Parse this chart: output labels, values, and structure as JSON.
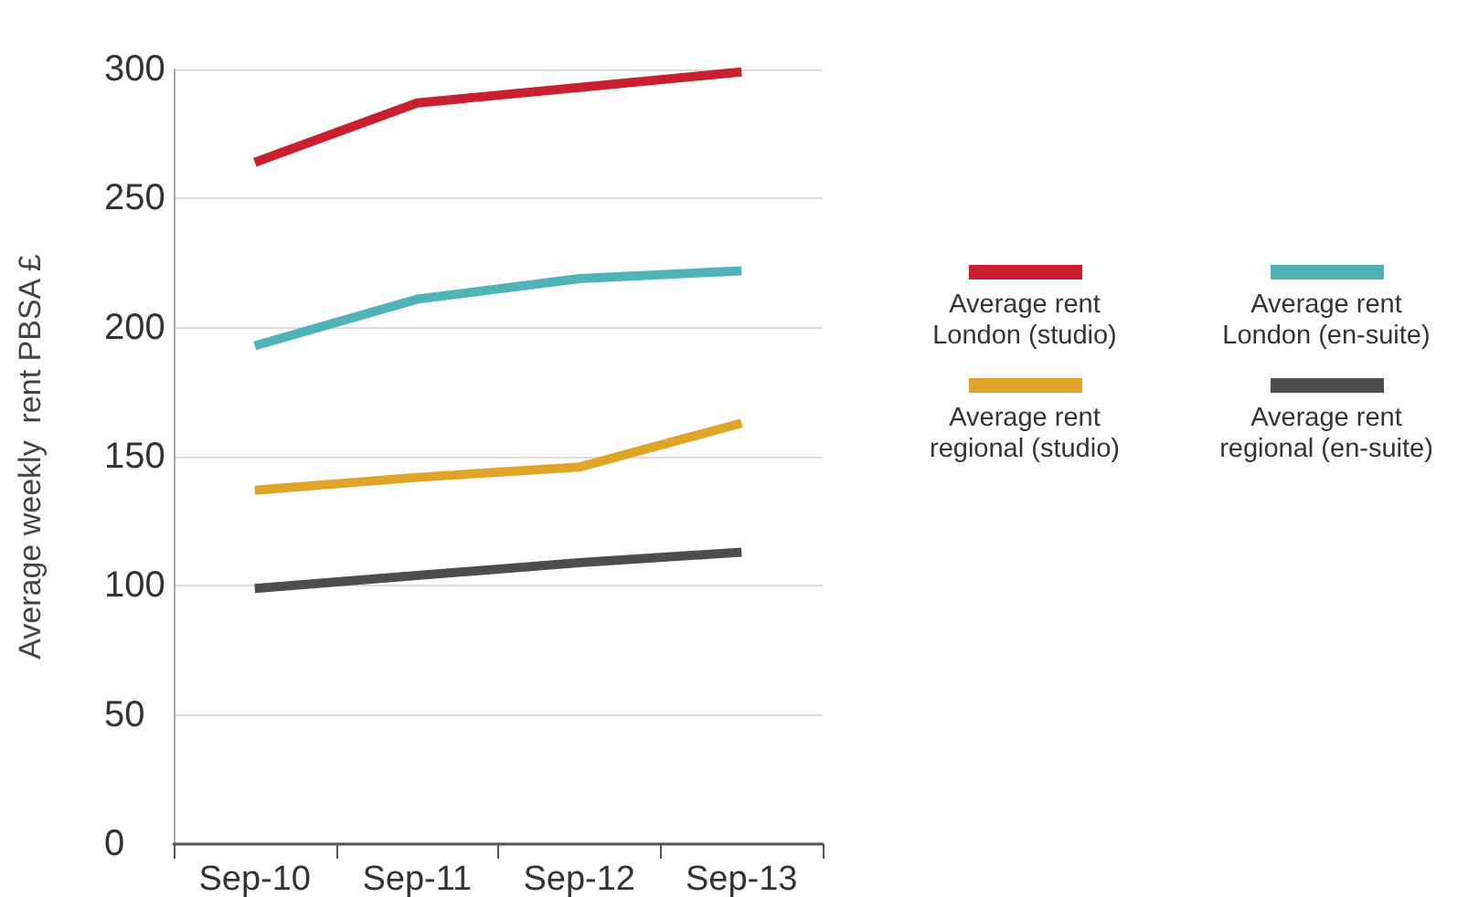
{
  "chart_data": {
    "type": "line",
    "ylabel": "Average weekly  rent PBSA £",
    "categories": [
      "Sep-10",
      "Sep-11",
      "Sep-12",
      "Sep-13"
    ],
    "series": [
      {
        "name": "Average rent London (studio)",
        "color": "#c8202f",
        "values": [
          264,
          287,
          293,
          299
        ]
      },
      {
        "name": "Average rent London (en-suite)",
        "color": "#4fb3b8",
        "values": [
          193,
          211,
          219,
          222
        ]
      },
      {
        "name": "Average rent regional (studio)",
        "color": "#e0a526",
        "values": [
          137,
          142,
          146,
          163
        ]
      },
      {
        "name": "Average rent regional (en-suite)",
        "color": "#4d4d4f",
        "values": [
          99,
          104,
          109,
          113
        ]
      }
    ],
    "ylim": [
      0,
      300
    ],
    "yticks": [
      0,
      50,
      100,
      150,
      200,
      250,
      300
    ],
    "grid": "y",
    "legend": "right",
    "marker": "none",
    "line_style": "solid"
  }
}
